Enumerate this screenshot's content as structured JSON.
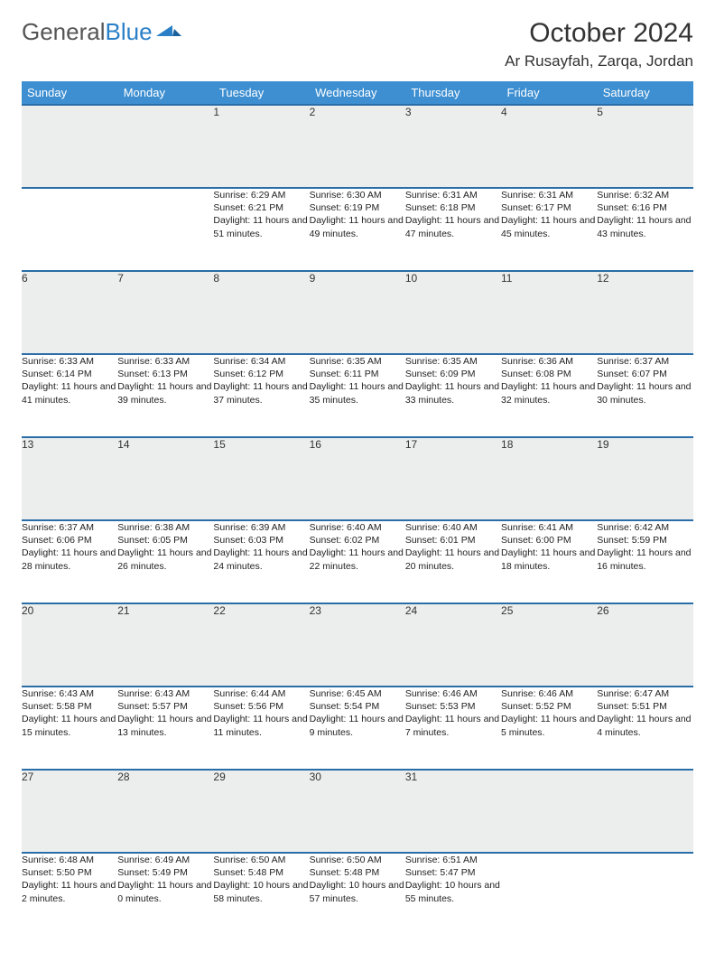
{
  "logo": {
    "text_gray": "General",
    "text_blue": "Blue"
  },
  "title": "October 2024",
  "location": "Ar Rusayfah, Zarqa, Jordan",
  "colors": {
    "header_bg": "#3d8fd1",
    "header_text": "#ffffff",
    "daynum_bg": "#eceded",
    "border": "#2a6ea8",
    "logo_gray": "#555555",
    "logo_blue": "#2a7fc7"
  },
  "day_headers": [
    "Sunday",
    "Monday",
    "Tuesday",
    "Wednesday",
    "Thursday",
    "Friday",
    "Saturday"
  ],
  "weeks": [
    [
      null,
      null,
      {
        "n": "1",
        "sr": "6:29 AM",
        "ss": "6:21 PM",
        "dl": "11 hours and 51 minutes."
      },
      {
        "n": "2",
        "sr": "6:30 AM",
        "ss": "6:19 PM",
        "dl": "11 hours and 49 minutes."
      },
      {
        "n": "3",
        "sr": "6:31 AM",
        "ss": "6:18 PM",
        "dl": "11 hours and 47 minutes."
      },
      {
        "n": "4",
        "sr": "6:31 AM",
        "ss": "6:17 PM",
        "dl": "11 hours and 45 minutes."
      },
      {
        "n": "5",
        "sr": "6:32 AM",
        "ss": "6:16 PM",
        "dl": "11 hours and 43 minutes."
      }
    ],
    [
      {
        "n": "6",
        "sr": "6:33 AM",
        "ss": "6:14 PM",
        "dl": "11 hours and 41 minutes."
      },
      {
        "n": "7",
        "sr": "6:33 AM",
        "ss": "6:13 PM",
        "dl": "11 hours and 39 minutes."
      },
      {
        "n": "8",
        "sr": "6:34 AM",
        "ss": "6:12 PM",
        "dl": "11 hours and 37 minutes."
      },
      {
        "n": "9",
        "sr": "6:35 AM",
        "ss": "6:11 PM",
        "dl": "11 hours and 35 minutes."
      },
      {
        "n": "10",
        "sr": "6:35 AM",
        "ss": "6:09 PM",
        "dl": "11 hours and 33 minutes."
      },
      {
        "n": "11",
        "sr": "6:36 AM",
        "ss": "6:08 PM",
        "dl": "11 hours and 32 minutes."
      },
      {
        "n": "12",
        "sr": "6:37 AM",
        "ss": "6:07 PM",
        "dl": "11 hours and 30 minutes."
      }
    ],
    [
      {
        "n": "13",
        "sr": "6:37 AM",
        "ss": "6:06 PM",
        "dl": "11 hours and 28 minutes."
      },
      {
        "n": "14",
        "sr": "6:38 AM",
        "ss": "6:05 PM",
        "dl": "11 hours and 26 minutes."
      },
      {
        "n": "15",
        "sr": "6:39 AM",
        "ss": "6:03 PM",
        "dl": "11 hours and 24 minutes."
      },
      {
        "n": "16",
        "sr": "6:40 AM",
        "ss": "6:02 PM",
        "dl": "11 hours and 22 minutes."
      },
      {
        "n": "17",
        "sr": "6:40 AM",
        "ss": "6:01 PM",
        "dl": "11 hours and 20 minutes."
      },
      {
        "n": "18",
        "sr": "6:41 AM",
        "ss": "6:00 PM",
        "dl": "11 hours and 18 minutes."
      },
      {
        "n": "19",
        "sr": "6:42 AM",
        "ss": "5:59 PM",
        "dl": "11 hours and 16 minutes."
      }
    ],
    [
      {
        "n": "20",
        "sr": "6:43 AM",
        "ss": "5:58 PM",
        "dl": "11 hours and 15 minutes."
      },
      {
        "n": "21",
        "sr": "6:43 AM",
        "ss": "5:57 PM",
        "dl": "11 hours and 13 minutes."
      },
      {
        "n": "22",
        "sr": "6:44 AM",
        "ss": "5:56 PM",
        "dl": "11 hours and 11 minutes."
      },
      {
        "n": "23",
        "sr": "6:45 AM",
        "ss": "5:54 PM",
        "dl": "11 hours and 9 minutes."
      },
      {
        "n": "24",
        "sr": "6:46 AM",
        "ss": "5:53 PM",
        "dl": "11 hours and 7 minutes."
      },
      {
        "n": "25",
        "sr": "6:46 AM",
        "ss": "5:52 PM",
        "dl": "11 hours and 5 minutes."
      },
      {
        "n": "26",
        "sr": "6:47 AM",
        "ss": "5:51 PM",
        "dl": "11 hours and 4 minutes."
      }
    ],
    [
      {
        "n": "27",
        "sr": "6:48 AM",
        "ss": "5:50 PM",
        "dl": "11 hours and 2 minutes."
      },
      {
        "n": "28",
        "sr": "6:49 AM",
        "ss": "5:49 PM",
        "dl": "11 hours and 0 minutes."
      },
      {
        "n": "29",
        "sr": "6:50 AM",
        "ss": "5:48 PM",
        "dl": "10 hours and 58 minutes."
      },
      {
        "n": "30",
        "sr": "6:50 AM",
        "ss": "5:48 PM",
        "dl": "10 hours and 57 minutes."
      },
      {
        "n": "31",
        "sr": "6:51 AM",
        "ss": "5:47 PM",
        "dl": "10 hours and 55 minutes."
      },
      null,
      null
    ]
  ],
  "labels": {
    "sunrise": "Sunrise:",
    "sunset": "Sunset:",
    "daylight": "Daylight:"
  }
}
